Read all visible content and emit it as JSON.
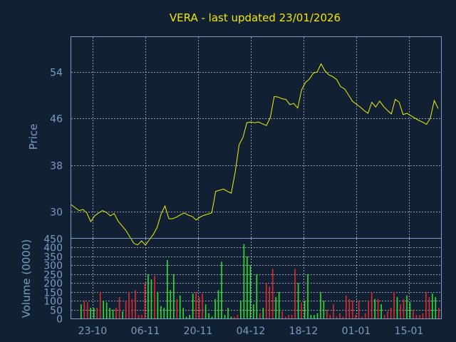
{
  "chart_data": {
    "type": "line",
    "title": "VERA - last updated 23/01/2026",
    "x_ticks": [
      "23-10",
      "06-11",
      "20-11",
      "04-12",
      "18-12",
      "01-01",
      "15-01"
    ],
    "price_panel": {
      "ylabel": "Price",
      "yticks": [
        30,
        38,
        46,
        54
      ],
      "ylim": [
        25.5,
        60
      ],
      "grid": true,
      "series": [
        {
          "values": [
            31.2,
            30.7,
            30.2,
            30.4,
            29.8,
            28.3,
            29.3,
            29.8,
            30.2,
            29.9,
            29.3,
            29.7,
            28.4,
            27.6,
            26.8,
            25.7,
            24.6,
            24.3,
            25.0,
            24.3,
            25.2,
            26.1,
            27.3,
            29.6,
            31.0,
            28.8,
            28.8,
            29.1,
            29.5,
            29.8,
            29.4,
            29.2,
            28.6,
            29.1,
            29.4,
            29.6,
            29.8,
            33.5,
            33.7,
            33.9,
            33.5,
            33.2,
            36.8,
            41.5,
            42.8,
            45.3,
            45.4,
            45.3,
            45.4,
            45.1,
            44.8,
            46.2,
            49.8,
            49.7,
            49.4,
            49.3,
            48.4,
            48.6,
            47.8,
            50.9,
            52.2,
            52.8,
            53.8,
            54.0,
            55.4,
            54.2,
            53.5,
            53.2,
            52.7,
            51.5,
            51.1,
            50.1,
            49.0,
            48.5,
            48.0,
            47.4,
            46.9,
            48.8,
            48.0,
            49.0,
            48.1,
            47.4,
            46.8,
            49.3,
            48.8,
            46.7,
            46.9,
            46.5,
            46.1,
            45.7,
            45.4,
            45.0,
            46.1,
            49.1,
            47.7
          ]
        }
      ]
    },
    "volume_panel": {
      "ylabel": "Volume (0000)",
      "yticks": [
        0,
        50,
        100,
        150,
        200,
        250,
        300,
        350,
        400,
        450
      ],
      "ylim": [
        0,
        450
      ],
      "grid": true,
      "series": [
        {
          "values": [
            80,
            100,
            90,
            60,
            60,
            60,
            150,
            100,
            90,
            60,
            50,
            60,
            120,
            40,
            100,
            150,
            110,
            160,
            20,
            20,
            200,
            250,
            220,
            240,
            150,
            70,
            60,
            330,
            160,
            250,
            110,
            130,
            60,
            10,
            20,
            140,
            150,
            120,
            140,
            80,
            30,
            10,
            110,
            160,
            320,
            20,
            60,
            10,
            10,
            20,
            100,
            420,
            350,
            300,
            80,
            250,
            30,
            60,
            200,
            180,
            280,
            120,
            150,
            40,
            10,
            20,
            20,
            280,
            200,
            90,
            100,
            250,
            20,
            20,
            30,
            150,
            100,
            50,
            20,
            80,
            10,
            30,
            10,
            130,
            110,
            100,
            20,
            100,
            10,
            30,
            100,
            150,
            110,
            110,
            80,
            20,
            40,
            60,
            150,
            120,
            80,
            110,
            130,
            90,
            50,
            20,
            20,
            30,
            150,
            120,
            140,
            120,
            60
          ],
          "up_color": "#2ee02e",
          "down_color": "#e02a2a"
        }
      ]
    },
    "colors": {
      "background": "#112033",
      "frame": "#7a9cc6",
      "grid": "#c0c8d4",
      "line": "#f2f200",
      "title": "#f2e600"
    }
  }
}
